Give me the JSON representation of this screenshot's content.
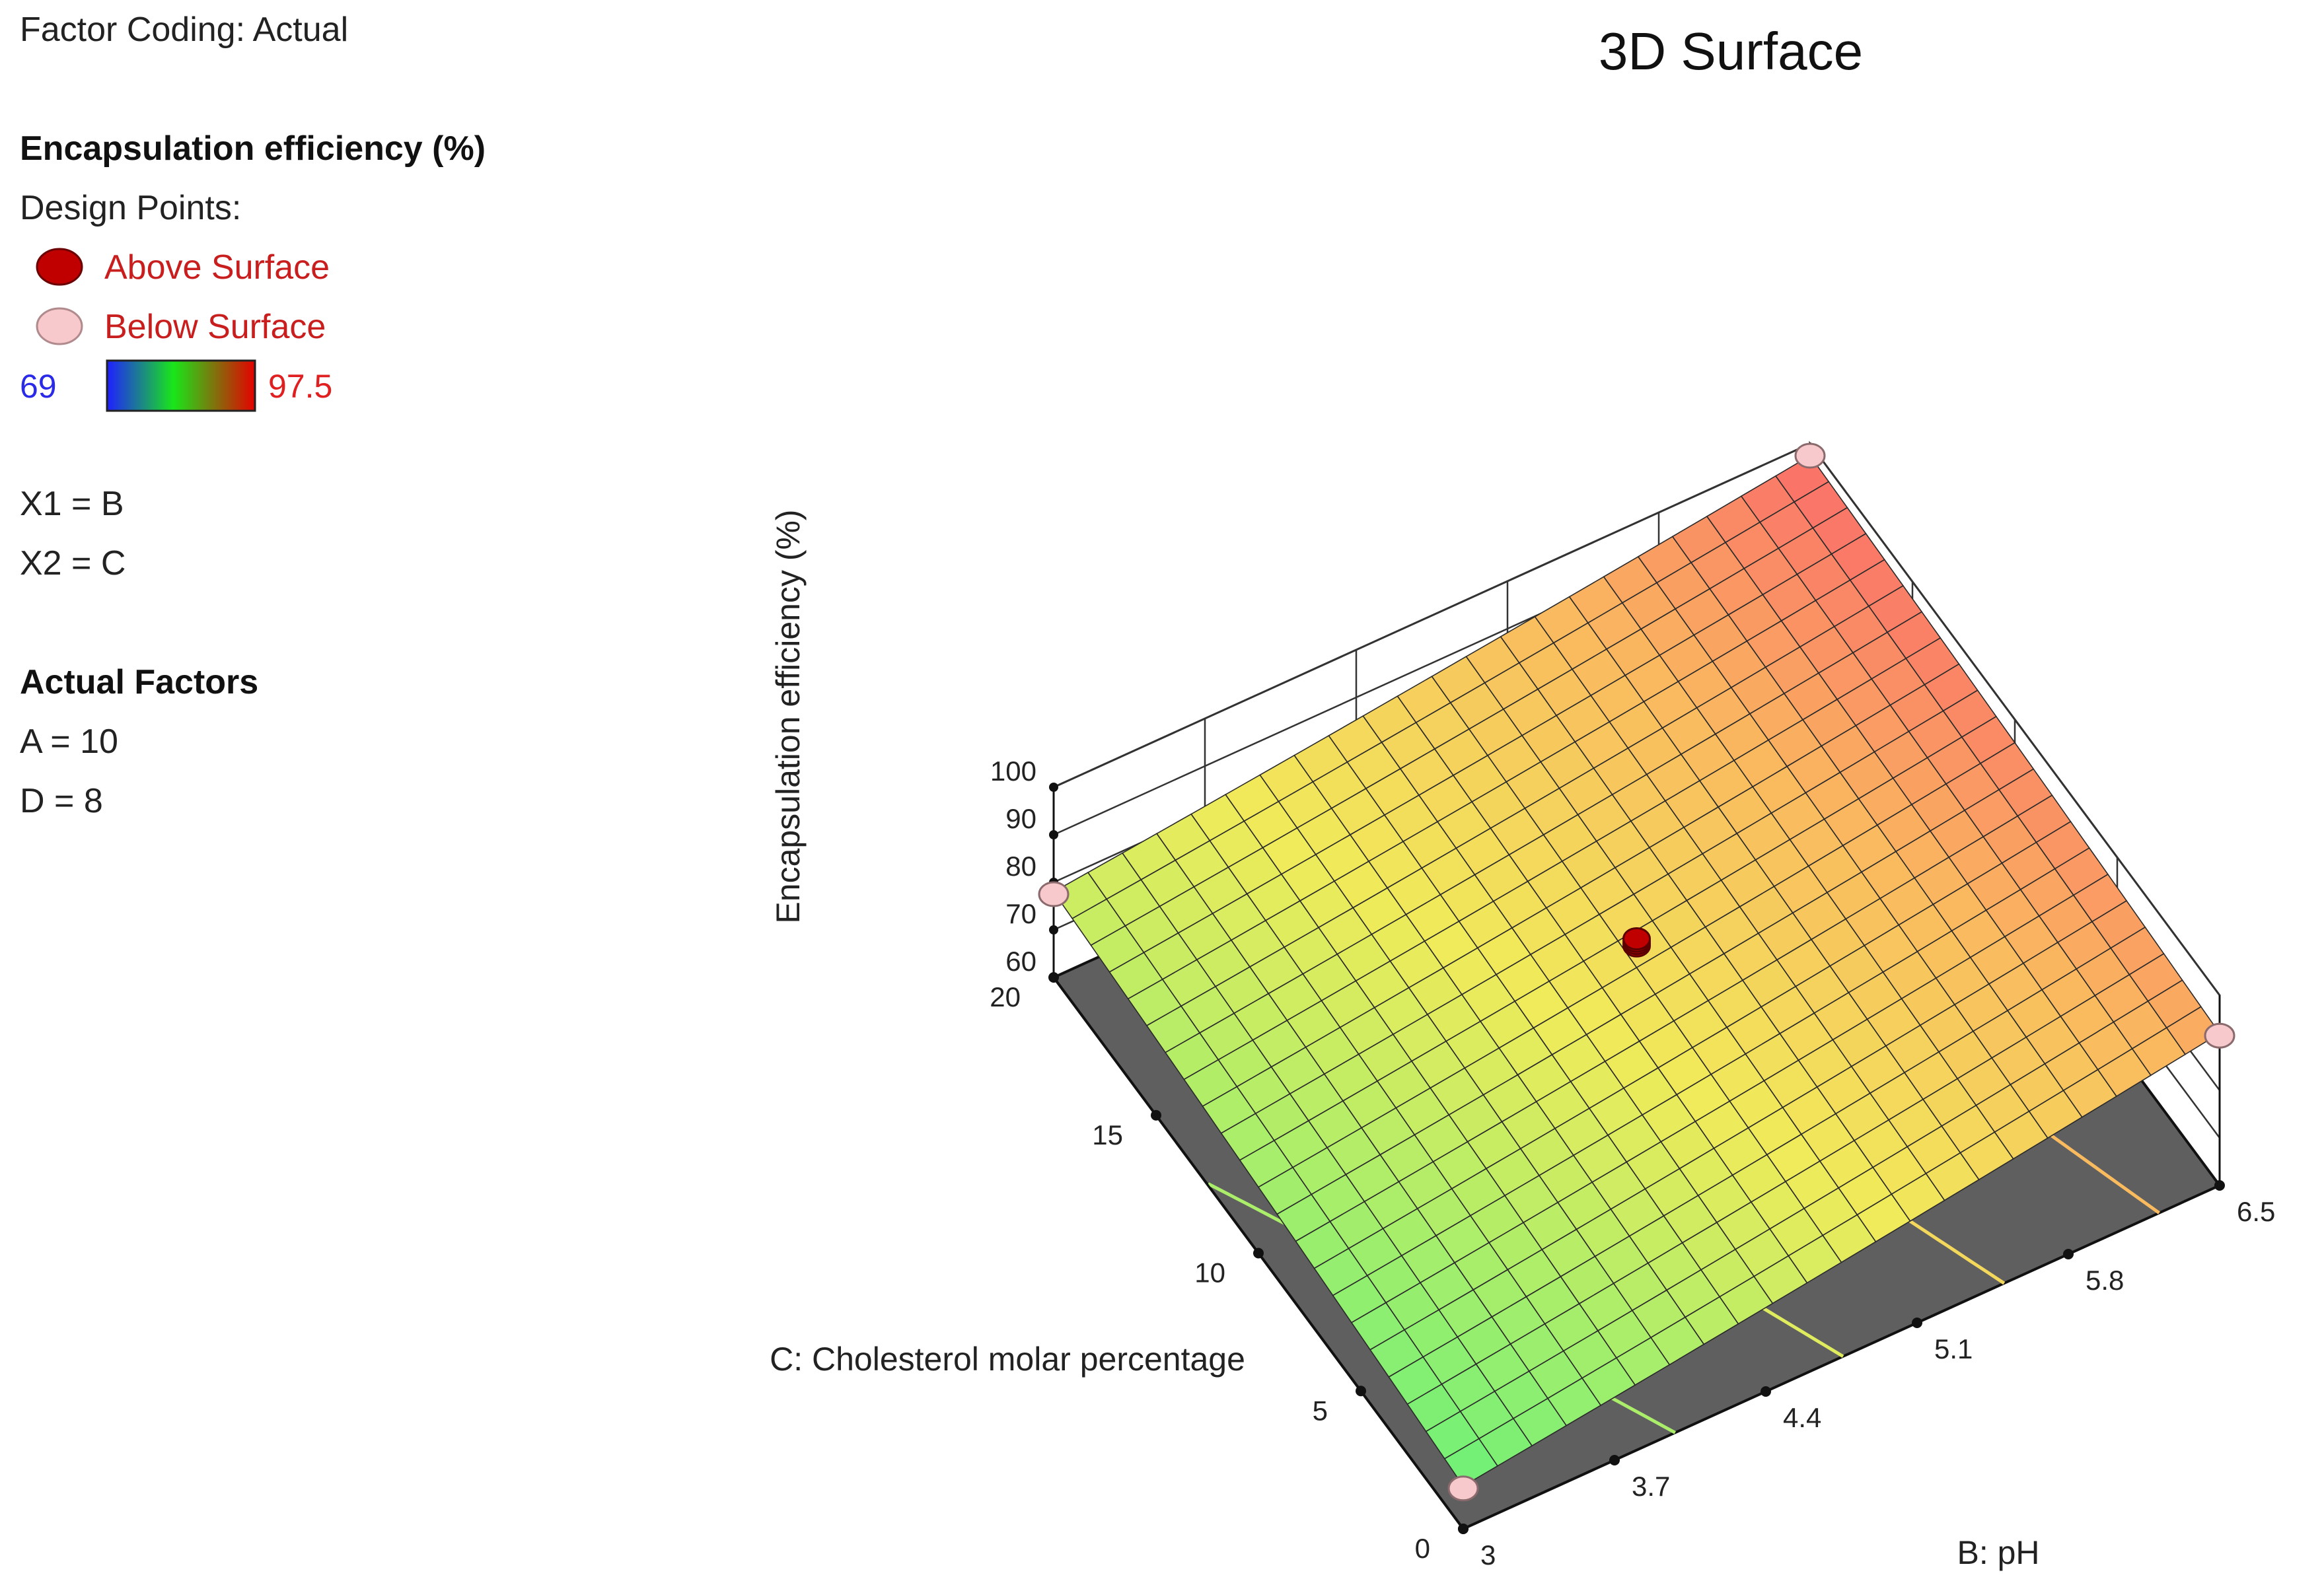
{
  "header": {
    "factor_coding": "Factor Coding: Actual"
  },
  "response": {
    "name": "Encapsulation efficiency (%)",
    "design_points_label": "Design Points:",
    "above_surface": "Above Surface",
    "below_surface": "Below Surface",
    "colorbar_min": "69",
    "colorbar_max": "97.5"
  },
  "factors": {
    "x1": "X1 = B",
    "x2": "X2 = C"
  },
  "actual_factors": {
    "heading": "Actual Factors",
    "a": "A = 10",
    "d": "D = 8"
  },
  "colors": {
    "above_marker": "#c00000",
    "below_marker": "#f7c9cc",
    "floor": "#5f5f5f",
    "colorbar_low": "#1f1fff",
    "colorbar_mid": "#19e619",
    "colorbar_high": "#e60000"
  },
  "chart_data": {
    "type": "surface",
    "title": "3D Surface",
    "xlabel": "B: pH",
    "ylabel": "C: Cholesterol molar percentage",
    "zlabel": "Encapsulation efficiency (%)",
    "x_ticks": [
      "3",
      "3.7",
      "4.4",
      "5.1",
      "5.8",
      "6.5"
    ],
    "y_ticks": [
      "0",
      "5",
      "10",
      "15",
      "20"
    ],
    "z_ticks": [
      "60",
      "70",
      "80",
      "90",
      "100"
    ],
    "xlim": [
      3,
      6.5
    ],
    "ylim": [
      0,
      20
    ],
    "zlim": [
      60,
      100
    ],
    "color_range": [
      69,
      97.5
    ],
    "grid": true,
    "surface_corners": [
      {
        "x": 3,
        "y": 0,
        "z": 69
      },
      {
        "x": 6.5,
        "y": 0,
        "z": 92
      },
      {
        "x": 3,
        "y": 20,
        "z": 78
      },
      {
        "x": 6.5,
        "y": 20,
        "z": 97.5
      }
    ],
    "design_points": [
      {
        "x": 3,
        "y": 0,
        "z": 68.5,
        "type": "below"
      },
      {
        "x": 3,
        "y": 20,
        "z": 77.5,
        "type": "below"
      },
      {
        "x": 6.5,
        "y": 0,
        "z": 91.5,
        "type": "below"
      },
      {
        "x": 6.5,
        "y": 20,
        "z": 97.5,
        "type": "below"
      },
      {
        "x": 4.75,
        "y": 10,
        "z": 88.5,
        "type": "above"
      },
      {
        "x": 4.75,
        "y": 10,
        "z": 89,
        "type": "above"
      },
      {
        "x": 4.75,
        "y": 10,
        "z": 89.5,
        "type": "above"
      },
      {
        "x": 4.75,
        "y": 10,
        "z": 90,
        "type": "above"
      }
    ],
    "contour_levels": [
      75,
      80,
      85,
      90,
      95
    ]
  }
}
